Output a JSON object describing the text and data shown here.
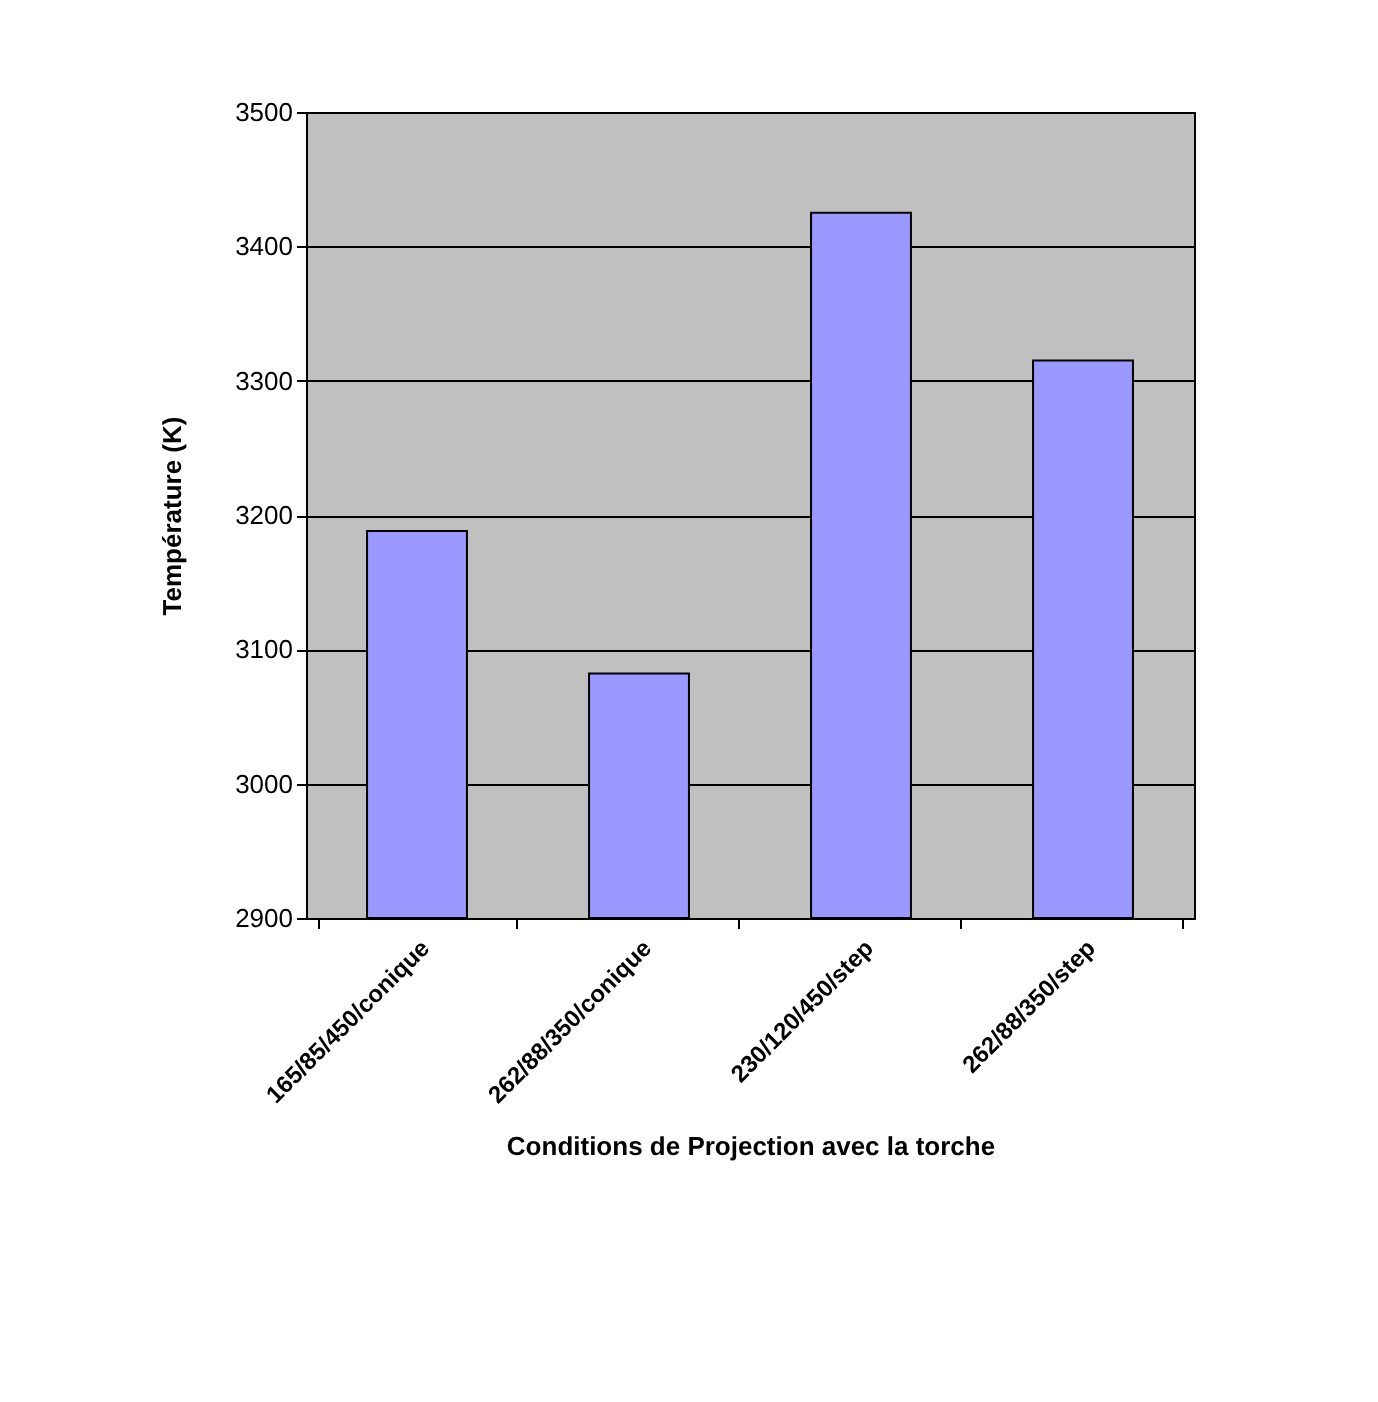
{
  "chart_data": {
    "type": "bar",
    "xlabel": "Conditions de Projection avec la torche",
    "ylabel": "Température (K)",
    "categories": [
      "165/85/450/conique",
      "262/88/350/conique",
      "230/120/450/step",
      "262/88/350/step"
    ],
    "series": [
      {
        "color": "#9999ff",
        "values": [
          3188,
          3082,
          3425,
          3315
        ]
      }
    ],
    "ylim": [
      2900,
      3500
    ],
    "yticks": [
      2900,
      3000,
      3100,
      3200,
      3300,
      3400,
      3500
    ],
    "grid": "y"
  }
}
